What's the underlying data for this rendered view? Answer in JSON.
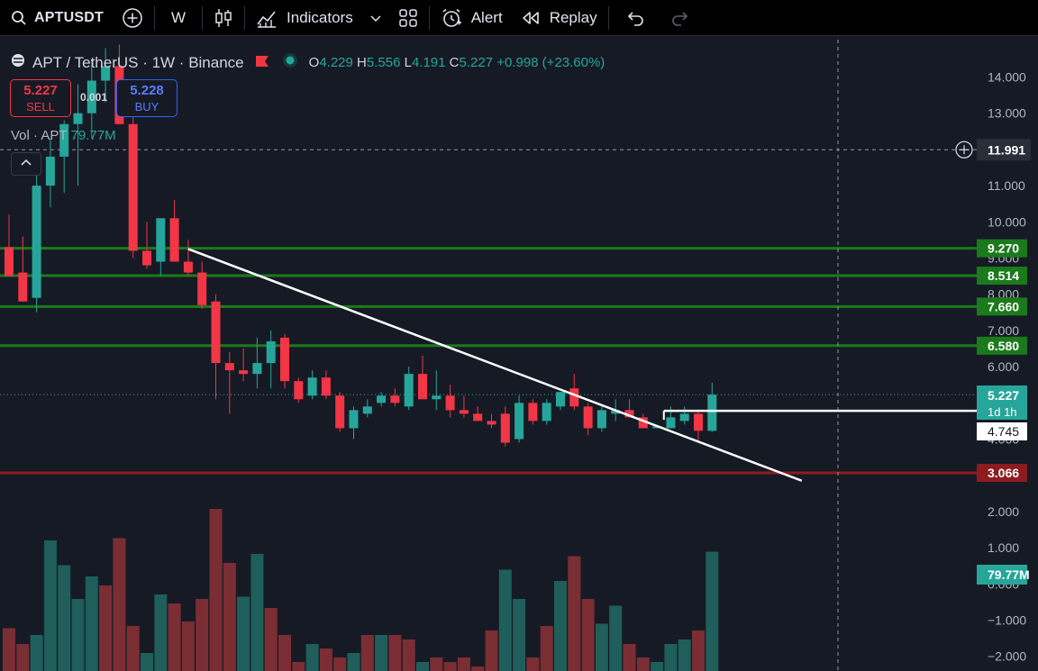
{
  "toolbar": {
    "symbol": "APTUSDT",
    "interval": "W",
    "indicators_label": "Indicators",
    "alert_label": "Alert",
    "replay_label": "Replay"
  },
  "legend": {
    "title": "APT / TetherUS · 1W · Binance",
    "open_label": "O",
    "open": "4.229",
    "high_label": "H",
    "high": "5.556",
    "low_label": "L",
    "low": "4.191",
    "close_label": "C",
    "close": "5.227",
    "change": "+0.998 (+23.60%)"
  },
  "trade": {
    "sell_price": "5.227",
    "sell_label": "SELL",
    "buy_price": "5.228",
    "buy_label": "BUY",
    "spread": "0.001"
  },
  "volume_legend": {
    "label": "Vol · APT",
    "value": "79.77M"
  },
  "colors": {
    "up": "#26a69a",
    "down": "#f23645",
    "support": "#1b7a1b",
    "resistance": "#8c1c20",
    "trendline": "#ffffff",
    "background": "#161a25"
  },
  "price_axis": {
    "ticks": [
      "14.000",
      "13.000",
      "12.000",
      "11.000",
      "10.000",
      "9.000",
      "8.000",
      "7.000",
      "6.000",
      "5.000",
      "4.000",
      "3.000",
      "2.000",
      "1.000",
      "0.000",
      "−1.000",
      "−2.000"
    ],
    "crosshair_label": "11.991",
    "last_price_label": "5.227",
    "countdown_label": "1d 1h",
    "box_label": "4.745",
    "volume_label": "79.77M"
  },
  "chart_data": {
    "type": "candlestick",
    "candles": [
      {
        "o": 9.3,
        "h": 10.2,
        "l": 8.6,
        "c": 8.5
      },
      {
        "o": 8.6,
        "h": 9.6,
        "l": 7.8,
        "c": 7.8
      },
      {
        "o": 7.9,
        "h": 11.3,
        "l": 7.5,
        "c": 11.0
      },
      {
        "o": 11.0,
        "h": 12.3,
        "l": 10.4,
        "c": 11.8
      },
      {
        "o": 11.8,
        "h": 12.8,
        "l": 10.8,
        "c": 12.7
      },
      {
        "o": 12.7,
        "h": 13.8,
        "l": 11.0,
        "c": 13.0
      },
      {
        "o": 13.0,
        "h": 14.5,
        "l": 12.3,
        "c": 13.9
      },
      {
        "o": 13.9,
        "h": 14.8,
        "l": 13.3,
        "c": 14.3
      },
      {
        "o": 14.3,
        "h": 14.9,
        "l": 12.8,
        "c": 12.7
      },
      {
        "o": 12.7,
        "h": 13.2,
        "l": 9.0,
        "c": 9.2
      },
      {
        "o": 9.2,
        "h": 10.0,
        "l": 8.7,
        "c": 8.8
      },
      {
        "o": 8.9,
        "h": 10.1,
        "l": 8.5,
        "c": 10.1
      },
      {
        "o": 10.1,
        "h": 10.6,
        "l": 8.9,
        "c": 8.9
      },
      {
        "o": 8.9,
        "h": 9.5,
        "l": 8.5,
        "c": 8.6
      },
      {
        "o": 8.6,
        "h": 8.9,
        "l": 7.6,
        "c": 7.7
      },
      {
        "o": 7.8,
        "h": 8.0,
        "l": 5.1,
        "c": 6.1
      },
      {
        "o": 6.1,
        "h": 6.4,
        "l": 4.7,
        "c": 5.9
      },
      {
        "o": 5.9,
        "h": 6.5,
        "l": 5.6,
        "c": 5.8
      },
      {
        "o": 5.8,
        "h": 6.8,
        "l": 5.4,
        "c": 6.1
      },
      {
        "o": 6.1,
        "h": 7.0,
        "l": 5.4,
        "c": 6.7
      },
      {
        "o": 6.8,
        "h": 6.9,
        "l": 5.4,
        "c": 5.6
      },
      {
        "o": 5.6,
        "h": 5.7,
        "l": 5.0,
        "c": 5.1
      },
      {
        "o": 5.2,
        "h": 5.9,
        "l": 5.1,
        "c": 5.7
      },
      {
        "o": 5.7,
        "h": 5.9,
        "l": 5.1,
        "c": 5.2
      },
      {
        "o": 5.2,
        "h": 5.3,
        "l": 4.2,
        "c": 4.3
      },
      {
        "o": 4.3,
        "h": 4.9,
        "l": 4.0,
        "c": 4.8
      },
      {
        "o": 4.7,
        "h": 5.1,
        "l": 4.6,
        "c": 4.9
      },
      {
        "o": 5.0,
        "h": 5.3,
        "l": 4.9,
        "c": 5.2
      },
      {
        "o": 5.2,
        "h": 5.4,
        "l": 4.9,
        "c": 5.0
      },
      {
        "o": 4.9,
        "h": 6.0,
        "l": 4.8,
        "c": 5.8
      },
      {
        "o": 5.8,
        "h": 6.3,
        "l": 5.2,
        "c": 5.1
      },
      {
        "o": 5.1,
        "h": 5.9,
        "l": 4.8,
        "c": 5.2
      },
      {
        "o": 5.2,
        "h": 5.5,
        "l": 4.6,
        "c": 4.8
      },
      {
        "o": 4.8,
        "h": 5.2,
        "l": 4.6,
        "c": 4.7
      },
      {
        "o": 4.7,
        "h": 4.9,
        "l": 4.5,
        "c": 4.5
      },
      {
        "o": 4.5,
        "h": 4.7,
        "l": 4.3,
        "c": 4.4
      },
      {
        "o": 4.7,
        "h": 4.9,
        "l": 3.8,
        "c": 3.9
      },
      {
        "o": 4.0,
        "h": 5.2,
        "l": 3.9,
        "c": 5.0
      },
      {
        "o": 5.0,
        "h": 5.1,
        "l": 4.4,
        "c": 4.5
      },
      {
        "o": 4.5,
        "h": 5.1,
        "l": 4.4,
        "c": 5.0
      },
      {
        "o": 4.9,
        "h": 5.3,
        "l": 4.8,
        "c": 5.3
      },
      {
        "o": 5.4,
        "h": 5.8,
        "l": 4.8,
        "c": 4.9
      },
      {
        "o": 4.9,
        "h": 5.0,
        "l": 4.1,
        "c": 4.3
      },
      {
        "o": 4.3,
        "h": 4.9,
        "l": 4.2,
        "c": 4.8
      },
      {
        "o": 4.7,
        "h": 5.1,
        "l": 4.5,
        "c": 4.8
      },
      {
        "o": 4.8,
        "h": 5.1,
        "l": 4.6,
        "c": 4.6
      },
      {
        "o": 4.6,
        "h": 4.7,
        "l": 4.3,
        "c": 4.3
      },
      {
        "o": 4.3,
        "h": 4.4,
        "l": 4.3,
        "c": 4.35
      },
      {
        "o": 4.3,
        "h": 4.9,
        "l": 4.3,
        "c": 4.6
      },
      {
        "o": 4.5,
        "h": 4.9,
        "l": 4.4,
        "c": 4.7
      },
      {
        "o": 4.7,
        "h": 4.8,
        "l": 3.9,
        "c": 4.23
      },
      {
        "o": 4.229,
        "h": 5.556,
        "l": 4.191,
        "c": 5.227
      }
    ],
    "volume": [
      {
        "v": 0.95,
        "up": false
      },
      {
        "v": 0.6,
        "up": false
      },
      {
        "v": 0.8,
        "up": true
      },
      {
        "v": 2.9,
        "up": true
      },
      {
        "v": 2.35,
        "up": true
      },
      {
        "v": 1.6,
        "up": true
      },
      {
        "v": 2.1,
        "up": true
      },
      {
        "v": 1.9,
        "up": false
      },
      {
        "v": 2.95,
        "up": false
      },
      {
        "v": 1.0,
        "up": false
      },
      {
        "v": 0.4,
        "up": true
      },
      {
        "v": 1.7,
        "up": true
      },
      {
        "v": 1.5,
        "up": false
      },
      {
        "v": 1.1,
        "up": false
      },
      {
        "v": 1.6,
        "up": false
      },
      {
        "v": 3.6,
        "up": false
      },
      {
        "v": 2.4,
        "up": false
      },
      {
        "v": 1.65,
        "up": true
      },
      {
        "v": 2.6,
        "up": true
      },
      {
        "v": 1.4,
        "up": false
      },
      {
        "v": 0.8,
        "up": false
      },
      {
        "v": 0.2,
        "up": false
      },
      {
        "v": 0.6,
        "up": true
      },
      {
        "v": 0.5,
        "up": false
      },
      {
        "v": 0.3,
        "up": false
      },
      {
        "v": 0.4,
        "up": true
      },
      {
        "v": 0.8,
        "up": false
      },
      {
        "v": 0.8,
        "up": true
      },
      {
        "v": 0.8,
        "up": false
      },
      {
        "v": 0.7,
        "up": false
      },
      {
        "v": 0.2,
        "up": true
      },
      {
        "v": 0.3,
        "up": false
      },
      {
        "v": 0.2,
        "up": false
      },
      {
        "v": 0.3,
        "up": false
      },
      {
        "v": 0.1,
        "up": false
      },
      {
        "v": 0.9,
        "up": false
      },
      {
        "v": 2.25,
        "up": true
      },
      {
        "v": 1.6,
        "up": true
      },
      {
        "v": 0.3,
        "up": false
      },
      {
        "v": 1.0,
        "up": false
      },
      {
        "v": 2.0,
        "up": true
      },
      {
        "v": 2.55,
        "up": false
      },
      {
        "v": 1.6,
        "up": false
      },
      {
        "v": 1.05,
        "up": true
      },
      {
        "v": 1.45,
        "up": true
      },
      {
        "v": 0.6,
        "up": false
      },
      {
        "v": 0.3,
        "up": false
      },
      {
        "v": 0.2,
        "up": true
      },
      {
        "v": 0.6,
        "up": true
      },
      {
        "v": 0.7,
        "up": true
      },
      {
        "v": 0.9,
        "up": false
      },
      {
        "v": 2.65,
        "up": true
      }
    ],
    "horizontal_levels": [
      {
        "price": 9.27,
        "label": "9.270",
        "kind": "support"
      },
      {
        "price": 8.514,
        "label": "8.514",
        "kind": "support"
      },
      {
        "price": 7.66,
        "label": "7.660",
        "kind": "support"
      },
      {
        "price": 6.58,
        "label": "6.580",
        "kind": "support"
      },
      {
        "price": 3.066,
        "label": "3.066",
        "kind": "resistance"
      }
    ],
    "trendline": {
      "from_index": 13,
      "from_price": 9.25,
      "to_index": 57.5,
      "to_price": 2.85
    },
    "breakout_box": {
      "from_index": 47.5,
      "to_price": 4.745,
      "top_price": 4.78
    },
    "crosshair_price": 11.991,
    "last_close": 5.227,
    "y_range": [
      -2.2,
      15.1
    ]
  }
}
